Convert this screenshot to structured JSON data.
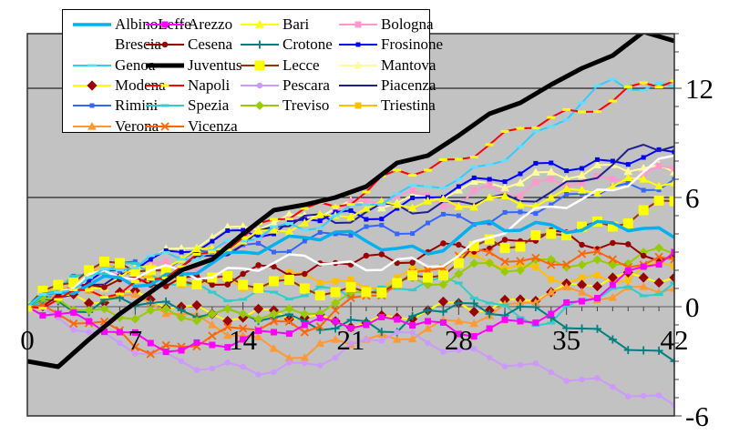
{
  "chart_data": {
    "type": "line",
    "title": "",
    "xlabel": "",
    "ylabel": "",
    "x_axis": {
      "tick_labels": [
        "0",
        "7",
        "14",
        "21",
        "28",
        "35",
        "42"
      ],
      "tick_values": [
        0,
        7,
        14,
        21,
        28,
        35,
        42
      ],
      "range": [
        0,
        42
      ]
    },
    "y_axis": {
      "tick_labels": [
        "-6",
        "0",
        "6",
        "12"
      ],
      "tick_values": [
        -6,
        0,
        6,
        12
      ],
      "range": [
        -6,
        15
      ],
      "gridlines": [
        6,
        12
      ],
      "side": "right"
    },
    "plot_background": "#C2C2C2",
    "grid_color": "#000000",
    "zero_line_color": "#595959",
    "border_color": "#383838",
    "legend": {
      "position": "top-left",
      "columns": 4
    },
    "x_step": 2,
    "x": [
      0,
      2,
      4,
      6,
      8,
      10,
      12,
      14,
      16,
      18,
      20,
      22,
      24,
      26,
      28,
      30,
      32,
      34,
      36,
      38,
      40,
      42
    ],
    "series": [
      {
        "name": "AlbinoLeffe",
        "color": "#00B0F0",
        "line_width": 3.5,
        "marker": {
          "shape": "none",
          "color": "#00B0F0",
          "size": 0
        },
        "values": [
          0,
          0.8,
          1.2,
          1.6,
          1.2,
          1.8,
          2.4,
          3,
          3.4,
          3.8,
          4.1,
          3.6,
          3.2,
          2.9,
          3.8,
          4.7,
          4.2,
          4.5,
          4.2,
          4.6,
          4.3,
          3.8
        ]
      },
      {
        "name": "Arezzo",
        "color": "#FF00FF",
        "line_width": 2,
        "marker": {
          "shape": "square",
          "color": "#FF00FF",
          "size": 7
        },
        "values": [
          0,
          -0.4,
          -0.8,
          -1.4,
          -2,
          -2.4,
          -2.1,
          -1.8,
          -1.4,
          -1,
          -0.8,
          -1,
          -0.7,
          -0.8,
          -1.5,
          -1.2,
          -0.8,
          -0.4,
          0.3,
          1.2,
          2.2,
          3
        ]
      },
      {
        "name": "Bari",
        "color": "#FFFF00",
        "line_width": 2,
        "marker": {
          "shape": "triangle",
          "color": "#FFFF00",
          "size": 8
        },
        "values": [
          0,
          0.6,
          1,
          1.6,
          2.2,
          2.6,
          3.2,
          3.6,
          4.2,
          4.6,
          5,
          5.4,
          5.6,
          5.8,
          5.5,
          6,
          5.6,
          6,
          6.4,
          6.6,
          7,
          6.8
        ]
      },
      {
        "name": "Bologna",
        "color": "#FF99CC",
        "line_width": 2,
        "marker": {
          "shape": "square",
          "color": "#FF99CC",
          "size": 7
        },
        "values": [
          0,
          0.6,
          1.2,
          1.8,
          2.4,
          2,
          2.8,
          3.4,
          4.2,
          4.8,
          5.2,
          5.8,
          6.1,
          6.1,
          5.5,
          6.7,
          6.1,
          7,
          6.8,
          7,
          7.3,
          7.6
        ]
      },
      {
        "name": "Brescia",
        "color": "#FFFFFF",
        "line_width": 2.5,
        "marker": {
          "shape": "none",
          "color": "#FFFFFF",
          "size": 0
        },
        "values": [
          0,
          0.8,
          1.8,
          1.6,
          2,
          2,
          1.6,
          2.1,
          2.4,
          2.8,
          2.4,
          2,
          2.6,
          2.2,
          2.8,
          3.8,
          4.8,
          5.5,
          5.9,
          6.4,
          7.4,
          8.3
        ]
      },
      {
        "name": "Cesena",
        "color": "#990000",
        "line_width": 2,
        "marker": {
          "shape": "circle",
          "color": "#990000",
          "size": 6.5
        },
        "values": [
          0,
          0.6,
          1.2,
          1.5,
          1.2,
          1.6,
          1.2,
          1.8,
          2.2,
          1.8,
          2.4,
          2.8,
          2.4,
          3,
          3.4,
          3.2,
          3.6,
          4.2,
          3.4,
          3.5,
          2.8,
          2.8
        ]
      },
      {
        "name": "Crotone",
        "color": "#008080",
        "line_width": 2,
        "marker": {
          "shape": "plus",
          "color": "#008080",
          "size": 9
        },
        "values": [
          0,
          0.3,
          -0.3,
          0.5,
          0.2,
          -0.2,
          -0.4,
          -0.4,
          -0.6,
          -0.8,
          -1.2,
          -0.8,
          -1.4,
          -0.2,
          0.2,
          -0.4,
          0,
          -0.6,
          -1.2,
          -1.8,
          -2.4,
          -3
        ]
      },
      {
        "name": "Frosinone",
        "color": "#0000FF",
        "line_width": 2,
        "marker": {
          "shape": "square",
          "color": "#0000FF",
          "size": 5
        },
        "values": [
          0,
          0.5,
          1.4,
          2,
          2.6,
          3,
          3.6,
          4.2,
          4,
          4.8,
          5.2,
          4.8,
          5.4,
          6,
          6.6,
          7,
          7.3,
          7.9,
          7.6,
          8,
          8.2,
          8.5
        ]
      },
      {
        "name": "Genoa",
        "color": "#33CCFF",
        "line_width": 2,
        "marker": {
          "shape": "dash",
          "color": "#66DDFF",
          "size": 9
        },
        "values": [
          0,
          0.8,
          1.6,
          2,
          2.8,
          2.6,
          3.1,
          3.6,
          4.4,
          4.2,
          5,
          5.6,
          6.2,
          6.6,
          7,
          7.8,
          8.8,
          9.9,
          11.2,
          12.5,
          11.9,
          12.1
        ]
      },
      {
        "name": "Juventus",
        "color": "#000000",
        "line_width": 5,
        "marker": {
          "shape": "none",
          "color": "#000000",
          "size": 0
        },
        "values": [
          -3,
          -3.3,
          -1.8,
          -0.4,
          0.8,
          2,
          2.6,
          4,
          5.3,
          5.6,
          6,
          6.6,
          7.9,
          8.3,
          9.4,
          10.6,
          11.2,
          12.2,
          13.1,
          13.8,
          15.1,
          14.6
        ]
      },
      {
        "name": "Lecce",
        "color": "#993300",
        "line_width": 2,
        "marker": {
          "shape": "square",
          "color": "#FFFF00",
          "size": 11
        },
        "values": [
          0,
          1.2,
          2,
          2.4,
          2,
          1.4,
          1.6,
          1.2,
          1.4,
          1,
          0.8,
          0.8,
          1.3,
          1.6,
          2.4,
          3.7,
          3.3,
          4,
          4.4,
          4.4,
          5.3,
          5.8
        ]
      },
      {
        "name": "Mantova",
        "color": "#FFFF99",
        "line_width": 2,
        "marker": {
          "shape": "triangle",
          "color": "#FFFF99",
          "size": 8
        },
        "values": [
          0,
          0.8,
          1.4,
          2,
          2.6,
          3.2,
          3.8,
          4.4,
          4.6,
          5,
          5.4,
          5.7,
          5.7,
          6,
          6.4,
          6.8,
          6.8,
          7.4,
          7.2,
          7.8,
          7.6,
          7.4
        ]
      },
      {
        "name": "Modena",
        "color": "#FFFF00",
        "line_width": 2,
        "marker": {
          "shape": "diamond",
          "color": "#990000",
          "size": 9
        },
        "values": [
          0,
          0.6,
          0.2,
          0.8,
          0.4,
          0,
          -0.4,
          -0.6,
          -0.2,
          -0.6,
          -0.8,
          -0.9,
          -0.6,
          -0.2,
          0.2,
          -0.2,
          0.4,
          0.8,
          1.2,
          1.6,
          1.6,
          1.6
        ]
      },
      {
        "name": "Napoli",
        "color": "#FF0000",
        "line_width": 2,
        "marker": {
          "shape": "dash",
          "color": "#FFFF00",
          "size": 9
        },
        "values": [
          0,
          0.4,
          0.9,
          0.7,
          1.5,
          2.2,
          3,
          3.8,
          4.8,
          5.4,
          5.5,
          6.3,
          7.5,
          7.5,
          8.1,
          8.9,
          9.8,
          10.4,
          10.7,
          11.3,
          12.3,
          12.4
        ]
      },
      {
        "name": "Pescara",
        "color": "#CC99FF",
        "line_width": 2,
        "marker": {
          "shape": "circle",
          "color": "#CC99FF",
          "size": 6.5
        },
        "values": [
          0,
          -0.6,
          -1.4,
          -2,
          -2.6,
          -3,
          -3.4,
          -3.3,
          -3.6,
          -3.1,
          -2.8,
          -1.8,
          -1.4,
          -2,
          -2.4,
          -2.8,
          -3.2,
          -3.6,
          -4,
          -4.4,
          -4.9,
          -5.4
        ]
      },
      {
        "name": "Piacenza",
        "color": "#202090",
        "line_width": 2,
        "marker": {
          "shape": "none",
          "color": "#202090",
          "size": 0
        },
        "values": [
          0,
          0.6,
          1.2,
          1.8,
          1.4,
          2.2,
          2.8,
          3.4,
          4.4,
          5,
          4.6,
          5.2,
          5.6,
          5.2,
          5.8,
          6,
          5.8,
          6.3,
          6.9,
          7.8,
          8.9,
          8.8
        ]
      },
      {
        "name": "Rimini",
        "color": "#3366FF",
        "line_width": 2,
        "marker": {
          "shape": "square",
          "color": "#3366FF",
          "size": 5
        },
        "values": [
          0,
          1,
          1.8,
          2.4,
          2,
          2.6,
          3,
          3.4,
          3,
          3.6,
          4,
          4.4,
          4,
          4.6,
          5,
          4.6,
          5.2,
          5.6,
          6.2,
          6.6,
          6.4,
          7
        ]
      },
      {
        "name": "Spezia",
        "color": "#33CCCC",
        "line_width": 2,
        "marker": {
          "shape": "dash",
          "color": "#33CCCC",
          "size": 9
        },
        "values": [
          0,
          1,
          1.8,
          2.4,
          1.8,
          1.2,
          0.8,
          0.4,
          0.8,
          0.6,
          1,
          0.6,
          1,
          1.4,
          1.3,
          0.2,
          -0.6,
          -0.9,
          0.4,
          1,
          0.6,
          1.3
        ]
      },
      {
        "name": "Treviso",
        "color": "#99CC00",
        "line_width": 2,
        "marker": {
          "shape": "diamond",
          "color": "#99CC00",
          "size": 8
        },
        "values": [
          0,
          0.4,
          -0.2,
          -0.6,
          -0.2,
          -0.6,
          -0.4,
          -0.4,
          -0.4,
          -0.4,
          0.2,
          0.8,
          1.4,
          1.2,
          1.8,
          2.4,
          2,
          2.6,
          2.3,
          2.3,
          3,
          2.9
        ]
      },
      {
        "name": "Triestina",
        "color": "#FFC000",
        "line_width": 2,
        "marker": {
          "shape": "square",
          "color": "#FFC000",
          "size": 7
        },
        "values": [
          0,
          1,
          1.8,
          2.2,
          1.6,
          1.2,
          1.6,
          1,
          1.4,
          1.8,
          1.4,
          1,
          1.6,
          2,
          2.8,
          2.4,
          2.3,
          1.5,
          1.6,
          1.3,
          2.2,
          2.2
        ]
      },
      {
        "name": "Verona",
        "color": "#FF9933",
        "line_width": 2,
        "marker": {
          "shape": "triangle",
          "color": "#FF9933",
          "size": 8
        },
        "values": [
          0,
          0.8,
          0.9,
          0.6,
          0.2,
          -0.4,
          -1,
          -1.6,
          -2.3,
          -2.8,
          -1.8,
          -1.8,
          -1.8,
          -1.2,
          -0.8,
          -0.5,
          0.2,
          0.8,
          0.8,
          0.5,
          1.1,
          1
        ]
      },
      {
        "name": "Vicenza",
        "color": "#FF6600",
        "line_width": 2,
        "marker": {
          "shape": "x",
          "color": "#FF6600",
          "size": 8
        },
        "values": [
          0,
          -0.4,
          -0.9,
          -1.3,
          -2.6,
          -2.2,
          -1.6,
          -1.2,
          -0.8,
          -1.4,
          -0.2,
          0.6,
          1.2,
          2,
          2.8,
          3,
          2.5,
          2.3,
          2.9,
          2.6,
          2.3,
          2.6
        ]
      }
    ],
    "draw_order": [
      "Mantova",
      "Bologna",
      "Rimini",
      "Frosinone",
      "Piacenza",
      "Bari",
      "Triestina",
      "Modena",
      "Verona",
      "Spezia",
      "Crotone",
      "Treviso",
      "Cesena",
      "Pescara",
      "Vicenza",
      "Arezzo",
      "Lecce",
      "Brescia",
      "AlbinoLeffe",
      "Genoa",
      "Napoli",
      "Juventus"
    ]
  }
}
